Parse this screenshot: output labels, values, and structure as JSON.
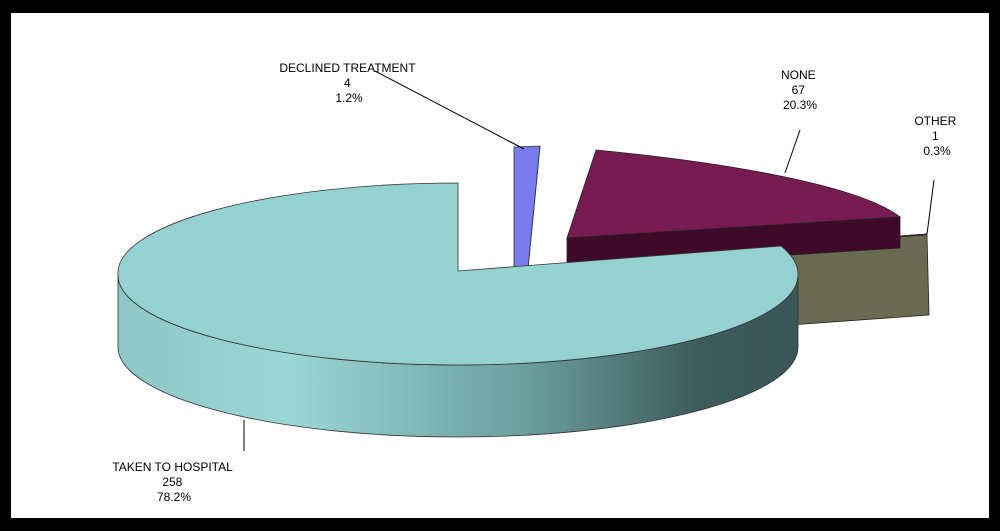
{
  "chart_data": {
    "type": "pie",
    "title": "",
    "slices": [
      {
        "label": "TAKEN TO HOSPITAL",
        "value": 258,
        "percent": "78.2%",
        "color": "#96D1D1",
        "side_color": "#6FA0A0",
        "exploded": false
      },
      {
        "label": "DECLINED TREATMENT",
        "value": 4,
        "percent": "1.2%",
        "color": "#7B7BF0",
        "side_color": "#5A5AC8",
        "exploded": true
      },
      {
        "label": "NONE",
        "value": 67,
        "percent": "20.3%",
        "color": "#761C53",
        "side_color": "#3F0A29",
        "exploded": true
      },
      {
        "label": "OTHER",
        "value": 1,
        "percent": "0.3%",
        "color": "#6F6F55",
        "side_color": "#55553F",
        "exploded": true
      }
    ],
    "view": "3d",
    "legend": "none",
    "labels": "outside with leader lines"
  }
}
